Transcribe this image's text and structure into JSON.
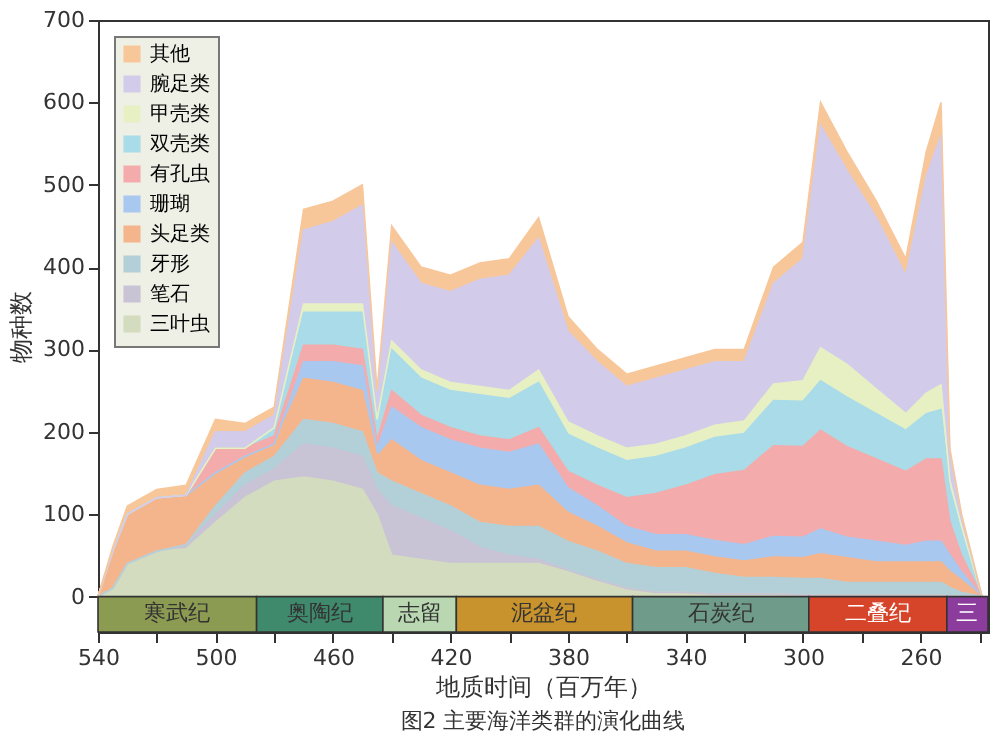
{
  "chart_data": {
    "type": "area",
    "stacked": true,
    "title": "图2 主要海洋类群的演化曲线",
    "xlabel": "地质时间（百万年）",
    "ylabel": "物种数",
    "x": [
      540,
      535,
      530,
      520,
      510,
      500,
      490,
      480,
      470,
      460,
      450,
      445,
      440,
      430,
      420,
      410,
      400,
      390,
      380,
      370,
      360,
      350,
      340,
      330,
      320,
      310,
      300,
      294,
      285,
      275,
      265,
      258,
      253,
      250,
      246,
      239
    ],
    "series": [
      {
        "name": "三叶虫",
        "color": "#d3dcbf",
        "values": [
          0,
          10,
          40,
          55,
          58,
          90,
          120,
          140,
          145,
          140,
          130,
          100,
          50,
          45,
          40,
          40,
          40,
          40,
          30,
          20,
          10,
          5,
          5,
          3,
          3,
          3,
          2,
          2,
          2,
          2,
          2,
          2,
          2,
          1,
          0,
          0
        ]
      },
      {
        "name": "笔石",
        "color": "#c9c3d6",
        "values": [
          0,
          0,
          0,
          0,
          5,
          10,
          15,
          15,
          40,
          40,
          40,
          30,
          60,
          50,
          40,
          20,
          10,
          5,
          2,
          0,
          0,
          0,
          0,
          0,
          0,
          0,
          0,
          0,
          0,
          0,
          0,
          0,
          0,
          0,
          0,
          0
        ]
      },
      {
        "name": "牙形",
        "color": "#b3d0d8",
        "values": [
          0,
          0,
          0,
          0,
          0,
          10,
          15,
          15,
          30,
          30,
          30,
          20,
          30,
          30,
          30,
          30,
          35,
          40,
          35,
          35,
          30,
          30,
          30,
          25,
          20,
          20,
          20,
          20,
          15,
          15,
          15,
          15,
          15,
          10,
          5,
          0
        ]
      },
      {
        "name": "头足类",
        "color": "#f5b58c",
        "values": [
          0,
          45,
          60,
          65,
          60,
          40,
          20,
          15,
          50,
          50,
          50,
          20,
          50,
          40,
          40,
          45,
          45,
          50,
          35,
          30,
          25,
          20,
          20,
          20,
          20,
          25,
          25,
          30,
          30,
          25,
          25,
          25,
          25,
          20,
          15,
          0
        ]
      },
      {
        "name": "珊瑚",
        "color": "#a9c8ef",
        "values": [
          0,
          0,
          0,
          0,
          0,
          0,
          0,
          0,
          20,
          25,
          30,
          10,
          40,
          40,
          40,
          45,
          45,
          50,
          30,
          25,
          20,
          20,
          20,
          20,
          20,
          25,
          25,
          30,
          25,
          25,
          20,
          25,
          25,
          20,
          10,
          0
        ]
      },
      {
        "name": "有孔虫",
        "color": "#f4abab",
        "values": [
          0,
          0,
          0,
          0,
          0,
          30,
          10,
          10,
          20,
          20,
          20,
          10,
          20,
          15,
          15,
          15,
          15,
          20,
          20,
          25,
          35,
          50,
          60,
          80,
          90,
          110,
          110,
          120,
          110,
          100,
          90,
          100,
          100,
          40,
          20,
          0
        ]
      },
      {
        "name": "双壳类",
        "color": "#a9dbe8",
        "values": [
          0,
          0,
          0,
          0,
          0,
          0,
          0,
          10,
          40,
          40,
          45,
          20,
          50,
          45,
          45,
          50,
          50,
          55,
          45,
          45,
          45,
          45,
          45,
          45,
          45,
          55,
          55,
          60,
          60,
          55,
          50,
          55,
          60,
          40,
          30,
          0
        ]
      },
      {
        "name": "甲壳类",
        "color": "#e7f0c3",
        "values": [
          0,
          0,
          0,
          0,
          0,
          0,
          0,
          0,
          10,
          10,
          10,
          5,
          10,
          10,
          10,
          10,
          10,
          15,
          15,
          15,
          15,
          15,
          15,
          15,
          15,
          20,
          25,
          40,
          40,
          30,
          20,
          25,
          30,
          10,
          5,
          0
        ]
      },
      {
        "name": "腕足类",
        "color": "#d3cbea",
        "values": [
          0,
          0,
          0,
          0,
          0,
          20,
          20,
          15,
          90,
          100,
          120,
          25,
          120,
          105,
          110,
          130,
          140,
          160,
          110,
          90,
          75,
          80,
          80,
          77,
          72,
          122,
          148,
          270,
          235,
          208,
          168,
          263,
          303,
          29,
          10,
          0
        ]
      },
      {
        "name": "其他",
        "color": "#f7c79a",
        "values": [
          0,
          5,
          10,
          10,
          12,
          15,
          10,
          10,
          25,
          25,
          25,
          10,
          20,
          20,
          20,
          20,
          20,
          25,
          18,
          15,
          15,
          15,
          15,
          15,
          15,
          20,
          20,
          28,
          23,
          20,
          20,
          30,
          40,
          10,
          5,
          0
        ]
      }
    ],
    "xlim": [
      540,
      237
    ],
    "xticks": [
      540,
      {
        "value": 520,
        "label": null
      },
      500,
      {
        "value": 480,
        "label": null
      },
      460,
      {
        "value": 440,
        "label": null
      },
      420,
      {
        "value": 400,
        "label": null
      },
      380,
      {
        "value": 360,
        "label": null
      },
      340,
      {
        "value": 320,
        "label": null
      },
      300,
      {
        "value": 280,
        "label": null
      },
      260,
      {
        "value": 240,
        "label": null
      }
    ],
    "ylim": [
      -43,
      700
    ],
    "yticks": [
      0,
      100,
      200,
      300,
      400,
      500,
      600,
      700
    ],
    "bands": [
      {
        "axis": "x",
        "from": 540,
        "to": 486,
        "label": "寒武纪",
        "color": "#8c9b52"
      },
      {
        "axis": "x",
        "from": 486,
        "to": 443,
        "label": "奥陶纪",
        "color": "#3f8a6c"
      },
      {
        "axis": "x",
        "from": 443,
        "to": 418,
        "label": "志留",
        "color": "#b9d8b2"
      },
      {
        "axis": "x",
        "from": 418,
        "to": 358,
        "label": "泥盆纪",
        "color": "#c8922c"
      },
      {
        "axis": "x",
        "from": 358,
        "to": 298,
        "label": "石炭纪",
        "color": "#6f9b8a"
      },
      {
        "axis": "x",
        "from": 298,
        "to": 251,
        "label": "二叠纪",
        "color": "#d6442a"
      },
      {
        "axis": "x",
        "from": 251,
        "to": 237,
        "label": "三",
        "color": "#8b3c9c"
      }
    ],
    "legend": "top left",
    "grid": false
  }
}
